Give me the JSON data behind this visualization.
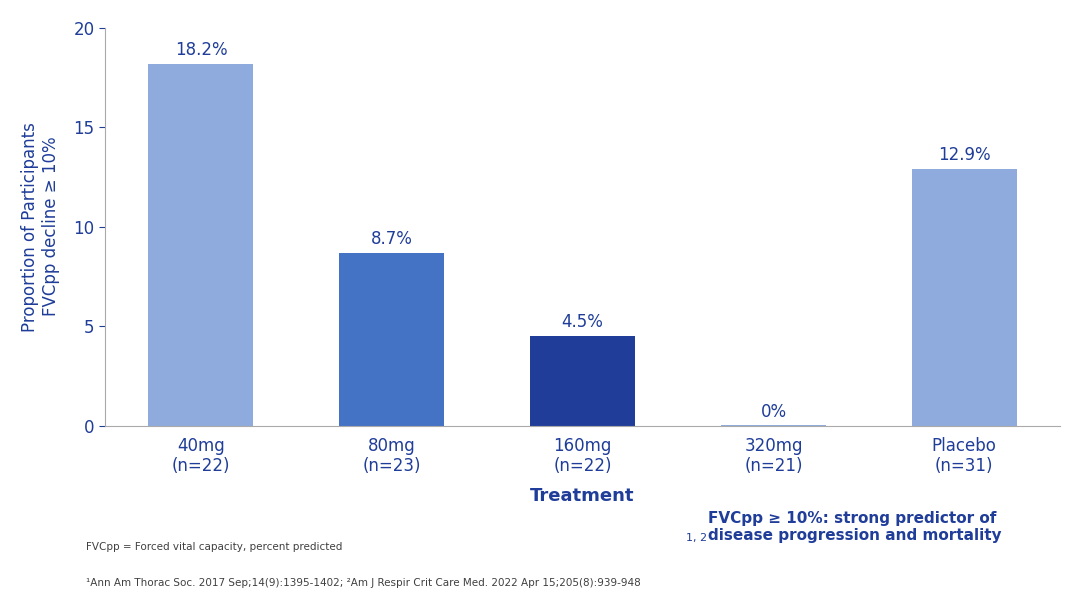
{
  "categories": [
    "40mg\n(n=22)",
    "80mg\n(n=23)",
    "160mg\n(n=22)",
    "320mg\n(n=21)",
    "Placebo\n(n=31)"
  ],
  "values": [
    18.2,
    8.7,
    4.5,
    0.04,
    12.9
  ],
  "labels": [
    "18.2%",
    "8.7%",
    "4.5%",
    "0%",
    "12.9%"
  ],
  "bar_colors": [
    "#8faadc",
    "#4472c4",
    "#1f3d99",
    "#8faadc",
    "#8faadc"
  ],
  "ylabel": "Proportion of Participants\nFVCpp decline ≥ 10%",
  "xlabel": "Treatment",
  "ylim": [
    0,
    20
  ],
  "yticks": [
    0,
    5,
    10,
    15,
    20
  ],
  "footnote_left_line1": "FVCpp = Forced vital capacity, percent predicted",
  "footnote_left_line2": "¹Ann Am Thorac Soc. 2017 Sep;14(9):1395-1402; ²Am J Respir Crit Care Med. 2022 Apr 15;205(8):939-948",
  "footnote_right_main": "FVCpp ≥ 10%: strong predictor of\ndisease progression and mortality",
  "xlabel_color": "#1f3d99",
  "ylabel_color": "#1f3d99",
  "tick_label_color": "#1f3d99",
  "ytick_label_color": "#1f3d99",
  "bar_label_color": "#1f3d99",
  "footnote_right_color": "#1f3d99",
  "footnote_left_color": "#404040",
  "background_color": "#ffffff",
  "bar_width": 0.55,
  "spine_color": "#aaaaaa"
}
